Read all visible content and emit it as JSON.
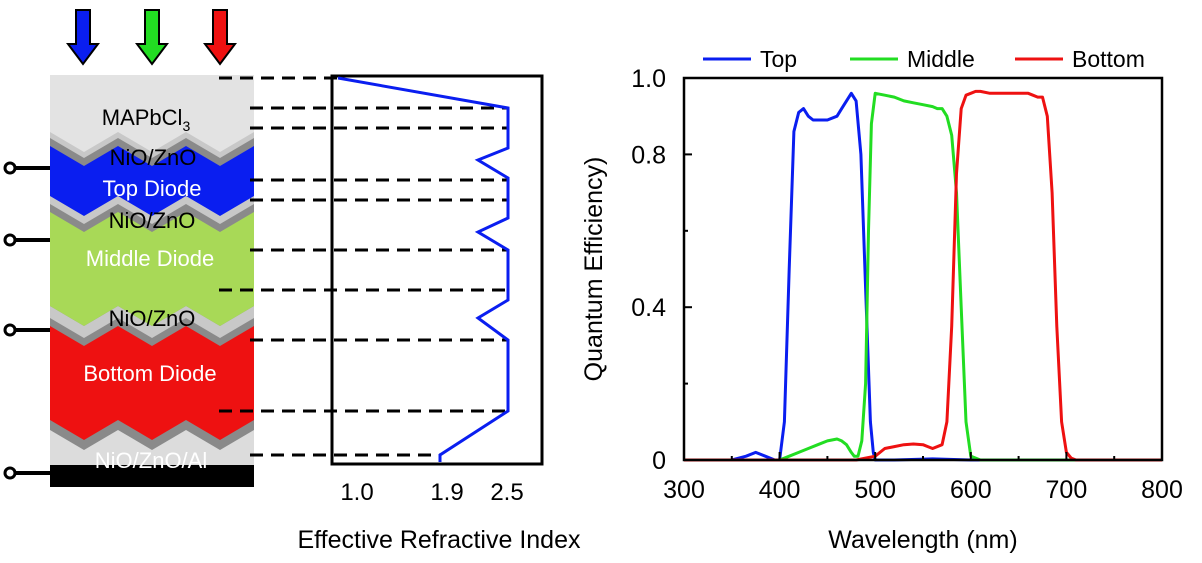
{
  "colors": {
    "top": "#0a1ef0",
    "middle": "#22dd22",
    "bottom": "#ee1111",
    "middle_band": "#a8d957",
    "gray_light": "#dcdcdc",
    "gray_dark": "#8a8a8a",
    "base": "#000000"
  },
  "icons": [
    "blue-arrow-icon",
    "green-arrow-icon",
    "red-arrow-icon",
    "terminal-icon"
  ],
  "stack": {
    "layers": {
      "mapbcl_main": "MAPbCl",
      "mapbcl_sub": "3",
      "nio1": "NiO/ZnO",
      "top_diode": "Top Diode",
      "nio2": "NiO/ZnO",
      "middle_diode": "Middle Diode",
      "nio3": "NiO/ZnO",
      "bottom_diode": "Bottom Diode",
      "electrode": "NiO/ZnO/Al"
    }
  },
  "index_profile": {
    "xlabel": "Effective Refractive Index",
    "ticks": [
      "1.0",
      "1.9",
      "2.5"
    ],
    "tick_values": [
      1.0,
      1.9,
      2.5
    ],
    "xlim": [
      0.75,
      2.85
    ]
  },
  "chart_data": {
    "type": "line",
    "xlabel": "Wavelength (nm)",
    "ylabel": "Quantum Efficiency)",
    "xlim": [
      300,
      800
    ],
    "ylim": [
      0,
      1.0
    ],
    "xticks": [
      300,
      400,
      500,
      600,
      700,
      800
    ],
    "xtick_labels": [
      "300",
      "400",
      "500",
      "600",
      "700",
      "800"
    ],
    "yticks": [
      0,
      0.4,
      0.8,
      1.0
    ],
    "ytick_labels": [
      "0",
      "0.4",
      "0.8",
      "1.0"
    ],
    "legend_position": "top",
    "series": [
      {
        "name": "Top",
        "x": [
          300,
          350,
          365,
          375,
          385,
          395,
          400,
          405,
          410,
          415,
          420,
          425,
          430,
          435,
          440,
          450,
          460,
          465,
          470,
          475,
          480,
          485,
          490,
          495,
          498,
          500,
          520,
          560,
          600,
          800
        ],
        "y": [
          0,
          0,
          0.01,
          0.02,
          0.01,
          0,
          0,
          0.1,
          0.5,
          0.86,
          0.91,
          0.92,
          0.9,
          0.89,
          0.89,
          0.89,
          0.9,
          0.92,
          0.94,
          0.96,
          0.94,
          0.8,
          0.45,
          0.1,
          0.02,
          0,
          0,
          0.003,
          0,
          0
        ]
      },
      {
        "name": "Middle",
        "x": [
          300,
          400,
          410,
          420,
          430,
          440,
          450,
          460,
          465,
          470,
          475,
          478,
          482,
          486,
          490,
          493,
          496,
          500,
          510,
          520,
          530,
          540,
          550,
          560,
          565,
          570,
          575,
          580,
          585,
          590,
          595,
          600,
          610,
          800
        ],
        "y": [
          0,
          0,
          0.01,
          0.02,
          0.03,
          0.04,
          0.05,
          0.055,
          0.05,
          0.04,
          0.02,
          0.01,
          0.01,
          0.05,
          0.2,
          0.6,
          0.88,
          0.96,
          0.955,
          0.95,
          0.94,
          0.935,
          0.93,
          0.925,
          0.92,
          0.92,
          0.9,
          0.85,
          0.7,
          0.4,
          0.1,
          0.01,
          0,
          0
        ]
      },
      {
        "name": "Bottom",
        "x": [
          300,
          480,
          490,
          500,
          510,
          520,
          530,
          540,
          550,
          555,
          560,
          570,
          575,
          580,
          585,
          590,
          595,
          600,
          605,
          610,
          620,
          640,
          660,
          665,
          670,
          675,
          680,
          685,
          690,
          695,
          700,
          705,
          710,
          800
        ],
        "y": [
          0,
          0,
          0.005,
          0.01,
          0.03,
          0.035,
          0.04,
          0.042,
          0.04,
          0.035,
          0.03,
          0.04,
          0.1,
          0.35,
          0.75,
          0.92,
          0.955,
          0.96,
          0.965,
          0.965,
          0.96,
          0.96,
          0.96,
          0.955,
          0.95,
          0.95,
          0.9,
          0.7,
          0.35,
          0.1,
          0.02,
          0.005,
          0,
          0
        ]
      }
    ]
  }
}
